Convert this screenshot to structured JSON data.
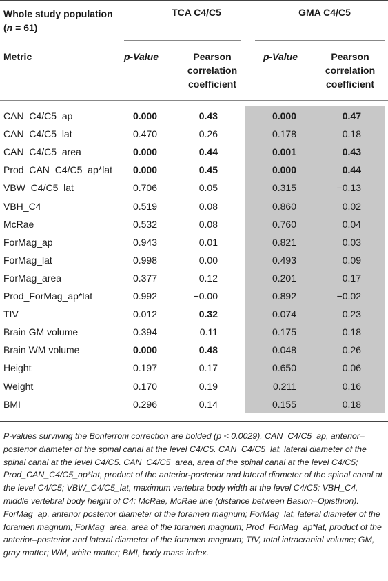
{
  "header": {
    "population_label": "Whole study population (",
    "n_italic": "n",
    "population_suffix": " = 61)",
    "group1": "TCA C4/C5",
    "group2": "GMA C4/C5",
    "col_metric": "Metric",
    "col_p1": "p-Value",
    "col_r1": "Pearson correlation coefficient",
    "col_p2": "p-Value",
    "col_r2": "Pearson correlation coefficient"
  },
  "rows": [
    {
      "metric": "CAN_C4/C5_ap",
      "p1": "0.000",
      "r1": "0.43",
      "p2": "0.000",
      "r2": "0.47",
      "b1": true,
      "b2": true
    },
    {
      "metric": "CAN_C4/C5_lat",
      "p1": "0.470",
      "r1": "0.26",
      "p2": "0.178",
      "r2": "0.18",
      "b1": false,
      "b2": false
    },
    {
      "metric": "CAN_C4/C5_area",
      "p1": "0.000",
      "r1": "0.44",
      "p2": "0.001",
      "r2": "0.43",
      "b1": true,
      "b2": true
    },
    {
      "metric": "Prod_CAN_C4/C5_ap*lat",
      "p1": "0.000",
      "r1": "0.45",
      "p2": "0.000",
      "r2": "0.44",
      "b1": true,
      "b2": true
    },
    {
      "metric": "VBW_C4/C5_lat",
      "p1": "0.706",
      "r1": "0.05",
      "p2": "0.315",
      "r2": "−0.13",
      "b1": false,
      "b2": false
    },
    {
      "metric": "VBH_C4",
      "p1": "0.519",
      "r1": "0.08",
      "p2": "0.860",
      "r2": "0.02",
      "b1": false,
      "b2": false
    },
    {
      "metric": "McRae",
      "p1": "0.532",
      "r1": "0.08",
      "p2": "0.760",
      "r2": "0.04",
      "b1": false,
      "b2": false
    },
    {
      "metric": "ForMag_ap",
      "p1": "0.943",
      "r1": "0.01",
      "p2": "0.821",
      "r2": "0.03",
      "b1": false,
      "b2": false
    },
    {
      "metric": "ForMag_lat",
      "p1": "0.998",
      "r1": "0.00",
      "p2": "0.493",
      "r2": "0.09",
      "b1": false,
      "b2": false
    },
    {
      "metric": "ForMag_area",
      "p1": "0.377",
      "r1": "0.12",
      "p2": "0.201",
      "r2": "0.17",
      "b1": false,
      "b2": false
    },
    {
      "metric": "Prod_ForMag_ap*lat",
      "p1": "0.992",
      "r1": "−0.00",
      "p2": "0.892",
      "r2": "−0.02",
      "b1": false,
      "b2": false
    },
    {
      "metric": "TIV",
      "p1": "0.012",
      "r1": "0.32",
      "p2": "0.074",
      "r2": "0.23",
      "b1": false,
      "b1r": true,
      "b2": false
    },
    {
      "metric": "Brain GM volume",
      "p1": "0.394",
      "r1": "0.11",
      "p2": "0.175",
      "r2": "0.18",
      "b1": false,
      "b2": false
    },
    {
      "metric": "Brain WM volume",
      "p1": "0.000",
      "r1": "0.48",
      "p2": "0.048",
      "r2": "0.26",
      "b1": true,
      "b2": false
    },
    {
      "metric": "Height",
      "p1": "0.197",
      "r1": "0.17",
      "p2": "0.650",
      "r2": "0.06",
      "b1": false,
      "b2": false
    },
    {
      "metric": "Weight",
      "p1": "0.170",
      "r1": "0.19",
      "p2": "0.211",
      "r2": "0.16",
      "b1": false,
      "b2": false
    },
    {
      "metric": "BMI",
      "p1": "0.296",
      "r1": "0.14",
      "p2": "0.155",
      "r2": "0.18",
      "b1": false,
      "b2": false
    }
  ],
  "footnote": "P-values surviving the Bonferroni correction are bolded (p < 0.0029). CAN_C4/C5_ap, anterior–posterior diameter of the spinal canal at the level C4/C5. CAN_C4/C5_lat, lateral diameter of the spinal canal at the level C4/C5. CAN_C4/C5_area, area of the spinal canal at the level C4/C5; Prod_CAN_C4/C5_ap*lat, product of the anterior-posterior and lateral diameter of the spinal canal at the level C4/C5; VBW_C4/C5_lat, maximum vertebra body width at the level C4/C5; VBH_C4, middle vertebral body height of C4; McRae, McRae line (distance between Basion–Opisthion). ForMag_ap, anterior posterior diameter of the foramen magnum; ForMag_lat, lateral diameter of the foramen magnum; ForMag_area, area of the foramen magnum; Prod_ForMag_ap*lat, product of the anterior–posterior and lateral diameter of the foramen magnum; TIV, total intracranial volume; GM, gray matter; WM, white matter; BMI, body mass index."
}
